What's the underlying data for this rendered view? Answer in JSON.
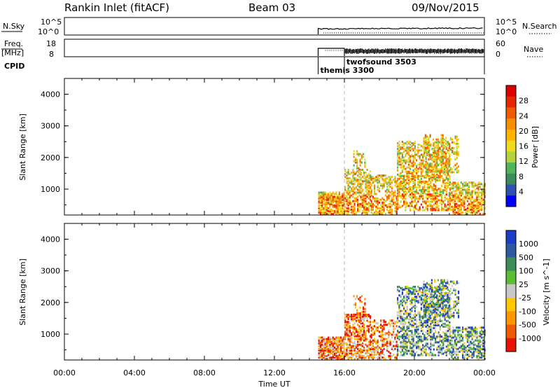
{
  "header": {
    "radar": "Rankin Inlet (fitACF)",
    "beam": "Beam 03",
    "date": "09/Nov/2015"
  },
  "summary": {
    "nsky_label": "N.Sky",
    "nsky_ticks": [
      "10^5",
      "10^0"
    ],
    "nsky_right_ticks": [
      "10^5",
      "10^0"
    ],
    "nsearch_label": "N.Search",
    "freq_label_1": "Freq.",
    "freq_label_2": "[MHz]",
    "freq_ticks": [
      "18",
      "8"
    ],
    "nave_label": "Nave",
    "nave_ticks": [
      "60",
      "0"
    ],
    "cpid_label": "CPID",
    "cpid_entries": [
      {
        "name": "themis 3300",
        "start_hour": 14.5
      },
      {
        "name": "twofsound 3503",
        "start_hour": 16.0
      }
    ]
  },
  "chart_data": [
    {
      "type": "heatmap",
      "quantity": "power",
      "ylabel": "Slant Range [km]",
      "ylim": [
        180,
        4500
      ],
      "yticks": [
        1000,
        2000,
        3000,
        4000
      ],
      "xlim": [
        0,
        24
      ],
      "colorbar": {
        "label": "Power [dB]",
        "ticks": [
          "4",
          "8",
          "12",
          "16",
          "20",
          "24",
          "28"
        ],
        "colors": [
          "#0000ff",
          "#2d52b4",
          "#3c8c5a",
          "#52b45a",
          "#b4d23c",
          "#f0dc1e",
          "#ffb400",
          "#fa8c00",
          "#f05a00",
          "#e62800",
          "#dc0000"
        ]
      },
      "scatter_regions": [
        {
          "hours": [
            14.5,
            16.0
          ],
          "range_km": [
            180,
            900
          ],
          "density": 0.8
        },
        {
          "hours": [
            16.0,
            17.5
          ],
          "range_km": [
            180,
            1600
          ],
          "density": 0.55
        },
        {
          "hours": [
            16.5,
            17.2
          ],
          "range_km": [
            1400,
            2200
          ],
          "density": 0.3
        },
        {
          "hours": [
            17.5,
            19.0
          ],
          "range_km": [
            180,
            1400
          ],
          "density": 0.45
        },
        {
          "hours": [
            19.0,
            22.0
          ],
          "range_km": [
            300,
            2500
          ],
          "density": 0.5
        },
        {
          "hours": [
            20.5,
            22.5
          ],
          "range_km": [
            1500,
            2700
          ],
          "density": 0.35
        },
        {
          "hours": [
            22.0,
            24.0
          ],
          "range_km": [
            180,
            1200
          ],
          "density": 0.55
        }
      ]
    },
    {
      "type": "heatmap",
      "quantity": "velocity",
      "ylabel": "Slant Range [km]",
      "ylim": [
        180,
        4500
      ],
      "yticks": [
        1000,
        2000,
        3000,
        4000
      ],
      "xlim": [
        0,
        24
      ],
      "xticks": [
        "00:00",
        "04:00",
        "08:00",
        "12:00",
        "16:00",
        "20:00",
        "00:00"
      ],
      "xlabel": "Time UT",
      "colorbar": {
        "label": "Velocity [m s^-1]",
        "ticks": [
          "1000",
          "500",
          "100",
          "25",
          "-25",
          "-100",
          "-500",
          "-1000"
        ],
        "colors": [
          "#1e3cc8",
          "#2d5aa0",
          "#3c8c5a",
          "#5abe32",
          "#c8c8c8",
          "#ffc800",
          "#ff9600",
          "#f05a00",
          "#e61400"
        ]
      },
      "scatter_regions": [
        {
          "hours": [
            14.5,
            16.0
          ],
          "range_km": [
            180,
            900
          ],
          "density": 0.8
        },
        {
          "hours": [
            16.0,
            17.5
          ],
          "range_km": [
            180,
            1600
          ],
          "density": 0.55
        },
        {
          "hours": [
            16.5,
            17.2
          ],
          "range_km": [
            1400,
            2200
          ],
          "density": 0.3
        },
        {
          "hours": [
            17.5,
            19.0
          ],
          "range_km": [
            180,
            1400
          ],
          "density": 0.45
        },
        {
          "hours": [
            19.0,
            22.0
          ],
          "range_km": [
            300,
            2500
          ],
          "density": 0.5
        },
        {
          "hours": [
            20.5,
            22.5
          ],
          "range_km": [
            1500,
            2700
          ],
          "density": 0.35
        },
        {
          "hours": [
            22.0,
            24.0
          ],
          "range_km": [
            180,
            1200
          ],
          "density": 0.55
        }
      ]
    }
  ]
}
